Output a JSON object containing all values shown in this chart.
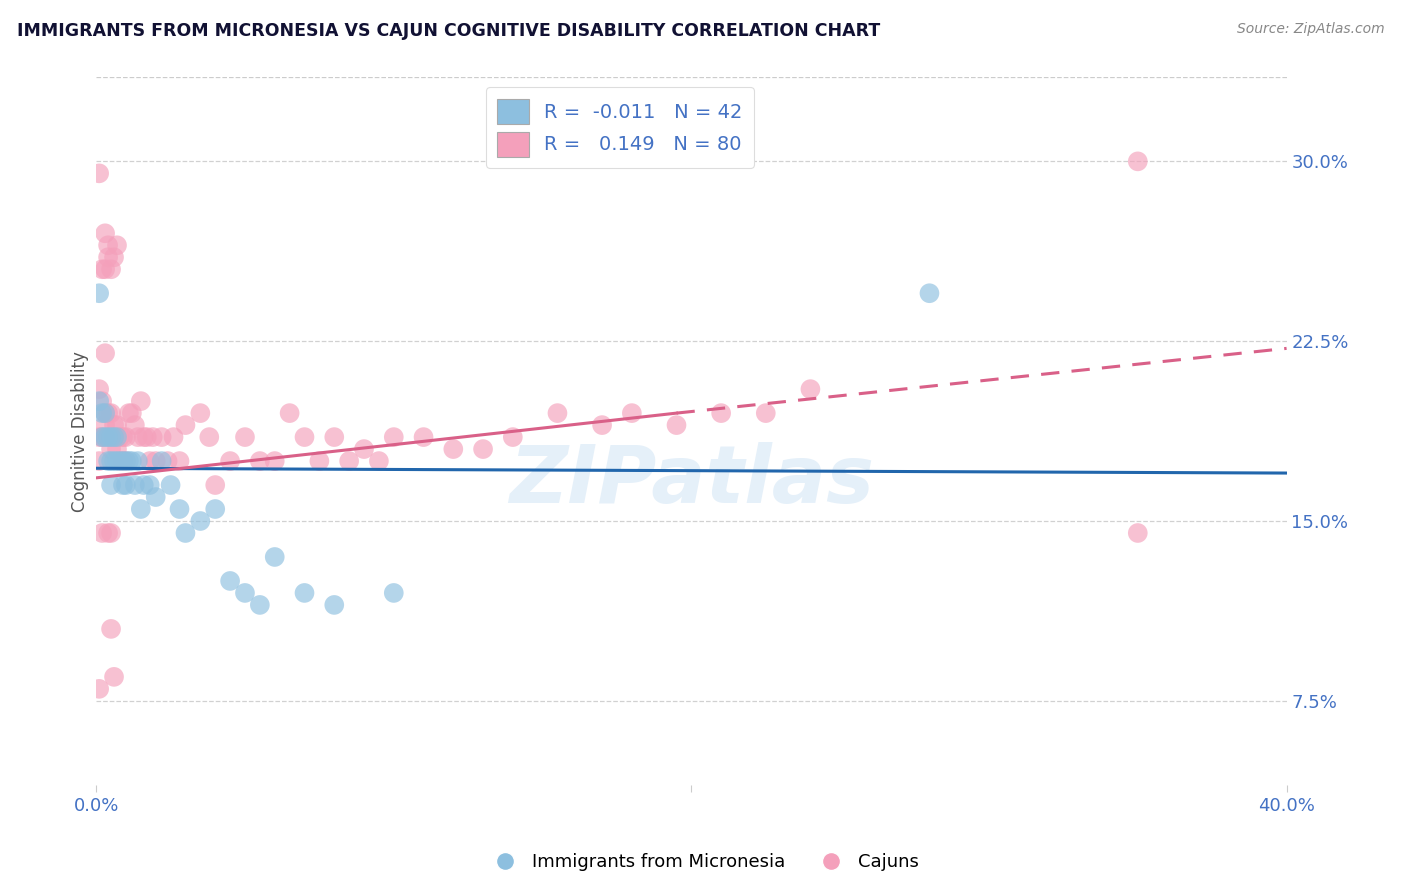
{
  "title": "IMMIGRANTS FROM MICRONESIA VS CAJUN COGNITIVE DISABILITY CORRELATION CHART",
  "source": "Source: ZipAtlas.com",
  "ylabel": "Cognitive Disability",
  "xlim": [
    0.0,
    0.4
  ],
  "ylim": [
    0.04,
    0.335
  ],
  "yticks": [
    0.075,
    0.15,
    0.225,
    0.3
  ],
  "ytick_labels": [
    "7.5%",
    "15.0%",
    "22.5%",
    "30.0%"
  ],
  "blue_R": -0.011,
  "blue_N": 42,
  "pink_R": 0.149,
  "pink_N": 80,
  "blue_color": "#8dbfdf",
  "pink_color": "#f4a0bb",
  "blue_line_color": "#2166ac",
  "pink_line_color": "#d96088",
  "watermark": "ZIPatlas",
  "legend_label_blue": "Immigrants from Micronesia",
  "legend_label_pink": "Cajuns",
  "blue_line_start_y": 0.172,
  "blue_line_end_y": 0.17,
  "pink_line_start_y": 0.168,
  "pink_line_end_solid_x": 0.195,
  "pink_line_end_solid_y": 0.195,
  "pink_line_end_x": 0.4,
  "pink_line_end_y": 0.222,
  "blue_scatter_x": [
    0.001,
    0.001,
    0.002,
    0.002,
    0.003,
    0.003,
    0.004,
    0.004,
    0.005,
    0.005,
    0.005,
    0.006,
    0.006,
    0.007,
    0.007,
    0.008,
    0.009,
    0.009,
    0.01,
    0.01,
    0.011,
    0.012,
    0.013,
    0.014,
    0.015,
    0.016,
    0.018,
    0.02,
    0.022,
    0.025,
    0.028,
    0.03,
    0.035,
    0.04,
    0.045,
    0.05,
    0.055,
    0.06,
    0.07,
    0.08,
    0.1,
    0.28
  ],
  "blue_scatter_y": [
    0.2,
    0.245,
    0.195,
    0.185,
    0.195,
    0.185,
    0.185,
    0.175,
    0.185,
    0.175,
    0.165,
    0.185,
    0.175,
    0.185,
    0.175,
    0.175,
    0.175,
    0.165,
    0.175,
    0.165,
    0.175,
    0.175,
    0.165,
    0.175,
    0.155,
    0.165,
    0.165,
    0.16,
    0.175,
    0.165,
    0.155,
    0.145,
    0.15,
    0.155,
    0.125,
    0.12,
    0.115,
    0.135,
    0.12,
    0.115,
    0.12,
    0.245
  ],
  "pink_scatter_x": [
    0.001,
    0.001,
    0.002,
    0.002,
    0.003,
    0.003,
    0.004,
    0.004,
    0.005,
    0.005,
    0.006,
    0.006,
    0.007,
    0.007,
    0.008,
    0.008,
    0.009,
    0.009,
    0.01,
    0.01,
    0.011,
    0.012,
    0.013,
    0.014,
    0.015,
    0.016,
    0.017,
    0.018,
    0.019,
    0.02,
    0.022,
    0.024,
    0.026,
    0.028,
    0.03,
    0.035,
    0.038,
    0.04,
    0.045,
    0.05,
    0.055,
    0.06,
    0.065,
    0.07,
    0.075,
    0.08,
    0.085,
    0.09,
    0.095,
    0.1,
    0.11,
    0.12,
    0.13,
    0.14,
    0.155,
    0.17,
    0.18,
    0.195,
    0.21,
    0.225,
    0.24,
    0.002,
    0.003,
    0.004,
    0.005,
    0.006,
    0.007,
    0.003,
    0.004,
    0.005,
    0.001,
    0.002,
    0.003,
    0.004,
    0.005,
    0.006,
    0.001,
    0.001,
    0.35,
    0.35
  ],
  "pink_scatter_y": [
    0.205,
    0.185,
    0.2,
    0.185,
    0.195,
    0.19,
    0.185,
    0.195,
    0.18,
    0.195,
    0.185,
    0.19,
    0.18,
    0.19,
    0.185,
    0.175,
    0.185,
    0.175,
    0.185,
    0.175,
    0.195,
    0.195,
    0.19,
    0.185,
    0.2,
    0.185,
    0.185,
    0.175,
    0.185,
    0.175,
    0.185,
    0.175,
    0.185,
    0.175,
    0.19,
    0.195,
    0.185,
    0.165,
    0.175,
    0.185,
    0.175,
    0.175,
    0.195,
    0.185,
    0.175,
    0.185,
    0.175,
    0.18,
    0.175,
    0.185,
    0.185,
    0.18,
    0.18,
    0.185,
    0.195,
    0.19,
    0.195,
    0.19,
    0.195,
    0.195,
    0.205,
    0.255,
    0.27,
    0.265,
    0.255,
    0.26,
    0.265,
    0.255,
    0.26,
    0.145,
    0.175,
    0.145,
    0.22,
    0.145,
    0.105,
    0.085,
    0.08,
    0.295,
    0.145,
    0.3
  ]
}
